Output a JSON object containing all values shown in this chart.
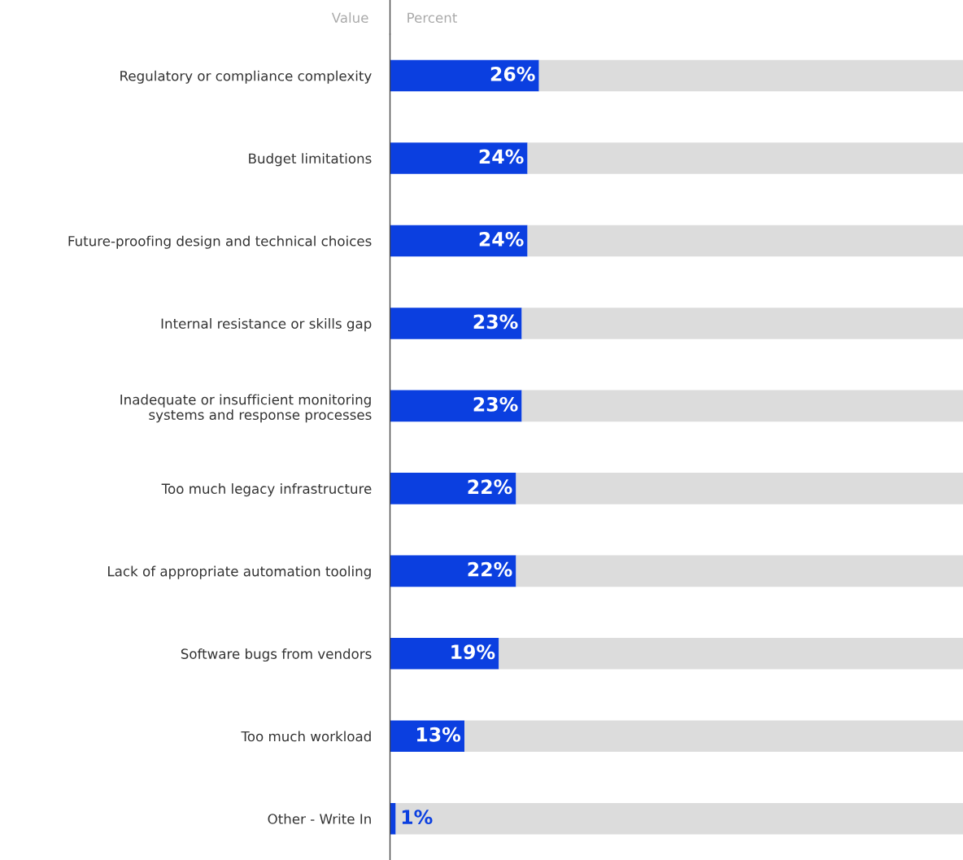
{
  "chart_data": {
    "type": "bar",
    "orientation": "horizontal",
    "xlabel": "Percent",
    "ylabel": "Value",
    "categories": [
      "Regulatory or compliance complexity",
      "Budget limitations",
      "Future-proofing design and technical choices",
      "Internal resistance or skills gap",
      "Inadequate or insufficient monitoring\nsystems and response processes",
      "Too much legacy infrastructure",
      "Lack of appropriate automation tooling",
      "Software bugs from vendors",
      "Too much workload",
      "Other - Write In"
    ],
    "series": [
      {
        "color": "#0b3fe0",
        "values": [
          26,
          24,
          24,
          23,
          23,
          22,
          22,
          19,
          13,
          1
        ],
        "value_labels": [
          "26%",
          "24%",
          "24%",
          "23%",
          "23%",
          "22%",
          "22%",
          "19%",
          "13%",
          "1%"
        ]
      },
      {
        "color": "#dcdcdc",
        "values": [
          74,
          76,
          76,
          77,
          77,
          78,
          78,
          81,
          87,
          99
        ]
      }
    ],
    "stacked": true,
    "xlim": [
      0,
      100
    ],
    "tick_labels": "y",
    "legend": false
  }
}
